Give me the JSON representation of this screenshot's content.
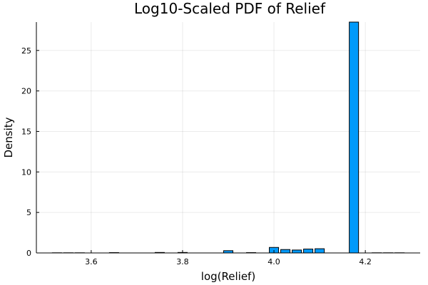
{
  "chart_data": {
    "type": "bar",
    "title": "Log10-Scaled PDF of Relief",
    "xlabel": "log(Relief)",
    "ylabel": "Density",
    "xlim": [
      3.48,
      4.32
    ],
    "ylim": [
      0,
      28.5
    ],
    "x_ticks": [
      3.6,
      3.8,
      4.0,
      4.2
    ],
    "x_tick_labels": [
      "3.6",
      "3.8",
      "4.0",
      "4.2"
    ],
    "y_ticks": [
      0,
      5,
      10,
      15,
      20,
      25
    ],
    "y_tick_labels": [
      "0",
      "5",
      "10",
      "15",
      "20",
      "25"
    ],
    "grid": true,
    "legend": "none",
    "bar_color": "#009AFA",
    "bin_width": 0.025,
    "bins": [
      {
        "x": 3.525,
        "y": 0.02
      },
      {
        "x": 3.55,
        "y": 0.02
      },
      {
        "x": 3.575,
        "y": 0.02
      },
      {
        "x": 3.65,
        "y": 0.04
      },
      {
        "x": 3.75,
        "y": 0.06
      },
      {
        "x": 3.8,
        "y": 0.06
      },
      {
        "x": 3.9,
        "y": 0.28
      },
      {
        "x": 3.95,
        "y": 0.04
      },
      {
        "x": 4.0,
        "y": 0.68
      },
      {
        "x": 4.025,
        "y": 0.42
      },
      {
        "x": 4.05,
        "y": 0.36
      },
      {
        "x": 4.075,
        "y": 0.48
      },
      {
        "x": 4.1,
        "y": 0.52
      },
      {
        "x": 4.175,
        "y": 28.5
      },
      {
        "x": 4.225,
        "y": 0.02
      },
      {
        "x": 4.25,
        "y": 0.02
      },
      {
        "x": 4.275,
        "y": 0.02
      }
    ]
  }
}
